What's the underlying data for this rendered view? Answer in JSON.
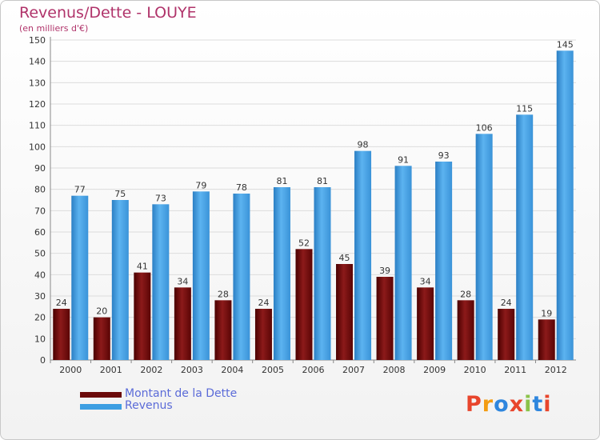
{
  "chart_data": {
    "type": "bar",
    "title": "Revenus/Dette - LOUYE",
    "subtitle": "(en milliers d'€)",
    "categories": [
      "2000",
      "2001",
      "2002",
      "2003",
      "2004",
      "2005",
      "2006",
      "2007",
      "2008",
      "2009",
      "2010",
      "2011",
      "2012"
    ],
    "series": [
      {
        "name": "Montant de la Dette",
        "color": "#7a0c0c",
        "values": [
          24,
          20,
          41,
          34,
          28,
          24,
          52,
          45,
          39,
          34,
          28,
          24,
          19
        ]
      },
      {
        "name": "Revenus",
        "color": "#3d9ee2",
        "values": [
          77,
          75,
          73,
          79,
          78,
          81,
          81,
          98,
          91,
          93,
          106,
          115,
          145
        ]
      }
    ],
    "ylim": [
      0,
      150
    ],
    "yticks": [
      0,
      10,
      20,
      30,
      40,
      50,
      60,
      70,
      80,
      90,
      100,
      110,
      120,
      130,
      140,
      150
    ],
    "grid": true,
    "legend_position": "bottom-left"
  },
  "logo": {
    "text": "Proxiti",
    "colors": [
      "#e8452c",
      "#f39c12",
      "#2e86de",
      "#e8452c",
      "#8bc34a",
      "#2e86de",
      "#e8452c"
    ]
  }
}
